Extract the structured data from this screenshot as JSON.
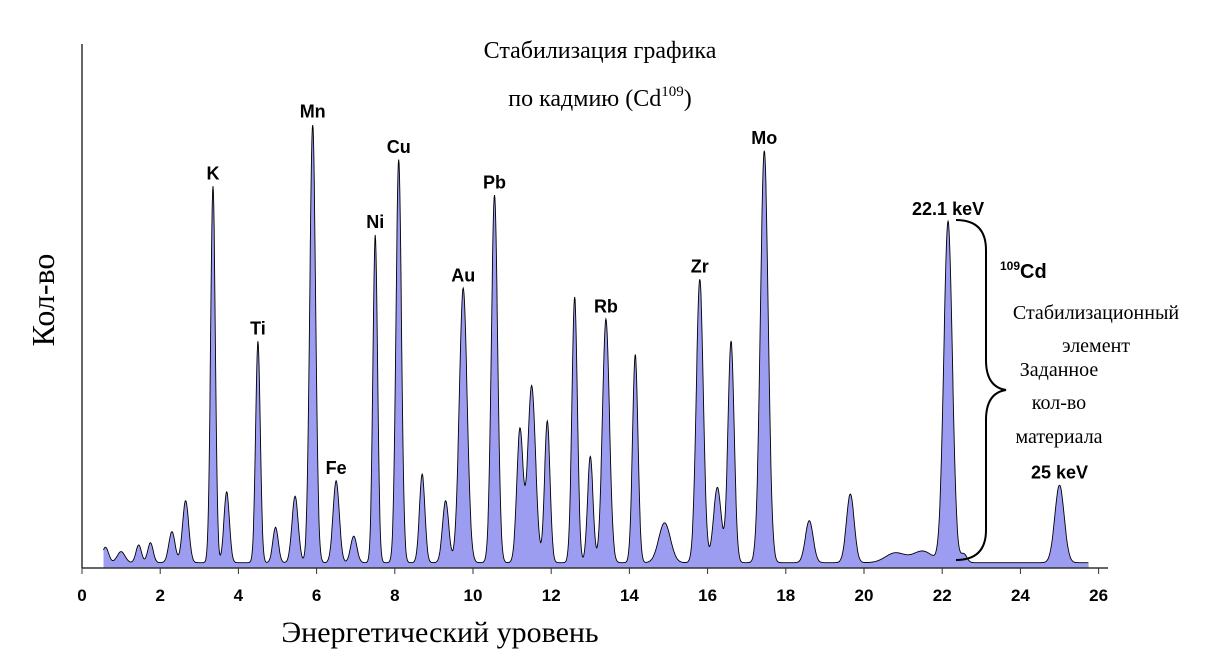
{
  "chart_data": {
    "type": "area",
    "title_line1": "Стабилизация графика",
    "title_line2_prefix": "по кадмию (Cd",
    "title_line2_sup": "109",
    "title_line2_suffix": ")",
    "xlabel": "Энергетический уровень",
    "ylabel": "Кол-во",
    "xlim": [
      0,
      26.5
    ],
    "ylim": [
      0,
      100
    ],
    "x_ticks": [
      "0",
      "2",
      "4",
      "6",
      "8",
      "10",
      "12",
      "14",
      "16",
      "18",
      "20",
      "22",
      "24",
      "26"
    ],
    "series_color": "#9c9cf0",
    "series_edge": "#000000",
    "baseline": 1.2,
    "peaks": [
      {
        "x": 0.6,
        "h": 3.5,
        "w": 0.08
      },
      {
        "x": 1.0,
        "h": 2.5,
        "w": 0.1
      },
      {
        "x": 1.45,
        "h": 4,
        "w": 0.07
      },
      {
        "x": 1.75,
        "h": 4.5,
        "w": 0.07
      },
      {
        "x": 2.3,
        "h": 7,
        "w": 0.08
      },
      {
        "x": 2.65,
        "h": 14,
        "w": 0.08
      },
      {
        "x": 3.35,
        "h": 85,
        "w": 0.06
      },
      {
        "x": 3.7,
        "h": 16,
        "w": 0.07
      },
      {
        "x": 4.5,
        "h": 50,
        "w": 0.06
      },
      {
        "x": 4.95,
        "h": 8,
        "w": 0.07
      },
      {
        "x": 5.45,
        "h": 15,
        "w": 0.08
      },
      {
        "x": 5.9,
        "h": 99,
        "w": 0.075
      },
      {
        "x": 6.5,
        "h": 18.5,
        "w": 0.08
      },
      {
        "x": 6.95,
        "h": 6,
        "w": 0.08
      },
      {
        "x": 7.5,
        "h": 74,
        "w": 0.06
      },
      {
        "x": 8.1,
        "h": 91,
        "w": 0.07
      },
      {
        "x": 8.7,
        "h": 20,
        "w": 0.07
      },
      {
        "x": 9.3,
        "h": 14,
        "w": 0.08
      },
      {
        "x": 9.75,
        "h": 62,
        "w": 0.1
      },
      {
        "x": 10.55,
        "h": 83,
        "w": 0.08
      },
      {
        "x": 11.2,
        "h": 30,
        "w": 0.08
      },
      {
        "x": 11.5,
        "h": 40,
        "w": 0.1
      },
      {
        "x": 11.9,
        "h": 32,
        "w": 0.07
      },
      {
        "x": 12.6,
        "h": 60,
        "w": 0.07
      },
      {
        "x": 13.0,
        "h": 24,
        "w": 0.07
      },
      {
        "x": 13.4,
        "h": 55,
        "w": 0.09
      },
      {
        "x": 14.15,
        "h": 47,
        "w": 0.07
      },
      {
        "x": 14.9,
        "h": 9,
        "w": 0.15
      },
      {
        "x": 15.8,
        "h": 64,
        "w": 0.09
      },
      {
        "x": 16.25,
        "h": 17,
        "w": 0.1
      },
      {
        "x": 16.6,
        "h": 50,
        "w": 0.08
      },
      {
        "x": 17.45,
        "h": 93,
        "w": 0.1
      },
      {
        "x": 18.6,
        "h": 9.5,
        "w": 0.1
      },
      {
        "x": 19.65,
        "h": 15.5,
        "w": 0.1
      },
      {
        "x": 20.8,
        "h": 2.2,
        "w": 0.25
      },
      {
        "x": 21.5,
        "h": 2.6,
        "w": 0.25
      },
      {
        "x": 22.15,
        "h": 77,
        "w": 0.11
      },
      {
        "x": 22.55,
        "h": 2,
        "w": 0.08
      },
      {
        "x": 25.0,
        "h": 17.5,
        "w": 0.12
      }
    ],
    "peak_labels": [
      {
        "text": "K",
        "x": 3.35,
        "y": 85
      },
      {
        "text": "Ti",
        "x": 4.5,
        "y": 50
      },
      {
        "text": "Mn",
        "x": 5.9,
        "y": 99
      },
      {
        "text": "Fe",
        "x": 6.5,
        "y": 18.5
      },
      {
        "text": "Ni",
        "x": 7.5,
        "y": 74
      },
      {
        "text": "Cu",
        "x": 8.1,
        "y": 91
      },
      {
        "text": "Au",
        "x": 9.75,
        "y": 62
      },
      {
        "text": "Pb",
        "x": 10.55,
        "y": 83
      },
      {
        "text": "Rb",
        "x": 13.4,
        "y": 55
      },
      {
        "text": "Zr",
        "x": 15.8,
        "y": 64
      },
      {
        "text": "Mo",
        "x": 17.45,
        "y": 93
      },
      {
        "text": "22.1 keV",
        "x": 22.15,
        "y": 77
      },
      {
        "text": "25 keV",
        "x": 25.0,
        "y": 17.5
      }
    ],
    "annotations": {
      "cd_label_sup": "109",
      "cd_label": "Cd",
      "stab_line1": "Стабилизационный",
      "stab_line2": "элемент",
      "amount_line1": "Заданное",
      "amount_line2": "кол-во",
      "amount_line3": "материала"
    }
  }
}
